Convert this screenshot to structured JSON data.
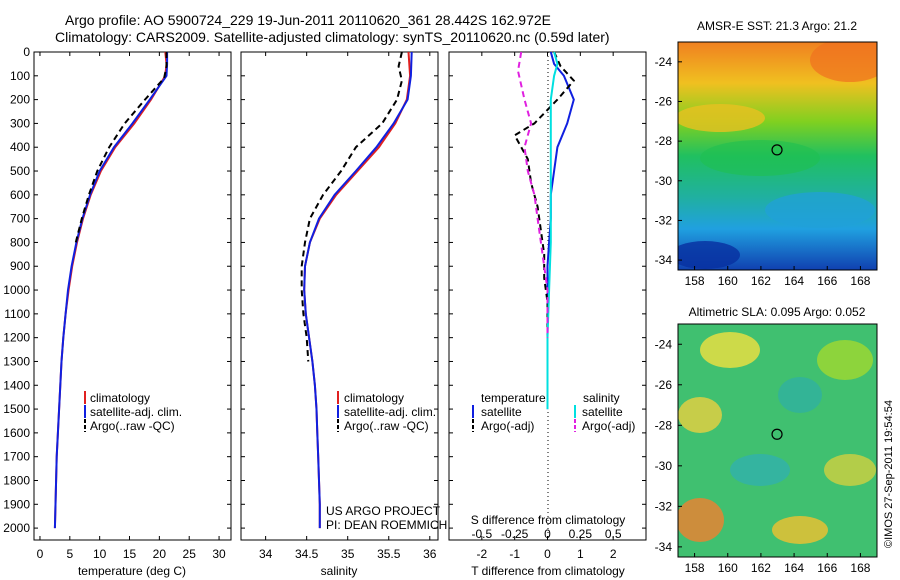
{
  "header": {
    "line1": "Argo profile: AO 5900724_229 19-Jun-2011 20110620_361 28.442S 162.972E",
    "line2": "Climatology: CARS2009. Satellite-adjusted climatology: synTS_20110620.nc (0.59d later)"
  },
  "side_stamp": "©IMOS 27-Sep-2011 19:54:54",
  "chart_data": [
    {
      "id": "temperature",
      "type": "line",
      "xlabel": "temperature (deg C)",
      "xlim": [
        -1,
        32
      ],
      "xticks": [
        0,
        5,
        10,
        15,
        20,
        25,
        30
      ],
      "ylim": [
        2050,
        0
      ],
      "yticks": [
        0,
        100,
        200,
        300,
        400,
        500,
        600,
        700,
        800,
        900,
        1000,
        1100,
        1200,
        1300,
        1400,
        1500,
        1600,
        1700,
        1800,
        1900,
        2000
      ],
      "legend": [
        "climatology",
        "satellite-adj. clim.",
        "Argo(..raw -QC)"
      ],
      "series": [
        {
          "name": "climatology",
          "color": "#e02020",
          "dash": "",
          "points": [
            [
              21.0,
              0
            ],
            [
              21.2,
              50
            ],
            [
              21.0,
              100
            ],
            [
              18.6,
              200
            ],
            [
              15.8,
              300
            ],
            [
              12.6,
              400
            ],
            [
              10.2,
              500
            ],
            [
              8.5,
              600
            ],
            [
              7.2,
              700
            ],
            [
              6.2,
              800
            ],
            [
              5.4,
              900
            ],
            [
              4.8,
              1000
            ],
            [
              4.3,
              1100
            ],
            [
              3.9,
              1200
            ],
            [
              3.6,
              1300
            ],
            [
              3.4,
              1400
            ],
            [
              3.2,
              1500
            ],
            [
              3.0,
              1600
            ],
            [
              2.8,
              1700
            ],
            [
              2.7,
              1800
            ],
            [
              2.6,
              1900
            ],
            [
              2.5,
              2000
            ]
          ]
        },
        {
          "name": "satellite-adj. clim.",
          "color": "#1020e0",
          "dash": "",
          "points": [
            [
              21.3,
              0
            ],
            [
              21.3,
              50
            ],
            [
              21.2,
              100
            ],
            [
              18.4,
              200
            ],
            [
              15.5,
              300
            ],
            [
              12.4,
              400
            ],
            [
              10.0,
              500
            ],
            [
              8.4,
              600
            ],
            [
              7.1,
              700
            ],
            [
              6.1,
              800
            ],
            [
              5.3,
              900
            ],
            [
              4.7,
              1000
            ],
            [
              4.3,
              1100
            ],
            [
              3.9,
              1200
            ],
            [
              3.6,
              1300
            ],
            [
              3.4,
              1400
            ],
            [
              3.2,
              1500
            ],
            [
              3.0,
              1600
            ],
            [
              2.8,
              1700
            ],
            [
              2.7,
              1800
            ],
            [
              2.6,
              1900
            ],
            [
              2.5,
              2000
            ]
          ]
        },
        {
          "name": "Argo(..raw -QC)",
          "color": "#000000",
          "dash": "6,4",
          "points": [
            [
              21.2,
              0
            ],
            [
              21.2,
              60
            ],
            [
              20.8,
              110
            ],
            [
              17.6,
              200
            ],
            [
              14.2,
              300
            ],
            [
              11.6,
              400
            ],
            [
              9.6,
              500
            ],
            [
              8.2,
              600
            ],
            [
              7.0,
              700
            ],
            [
              6.0,
              800
            ]
          ]
        }
      ]
    },
    {
      "id": "salinity",
      "type": "line",
      "xlabel": "salinity",
      "xlim": [
        33.7,
        36.1
      ],
      "xticks": [
        34,
        34.5,
        35,
        35.5,
        36
      ],
      "ylim": [
        2050,
        0
      ],
      "yticks": [
        0,
        100,
        200,
        300,
        400,
        500,
        600,
        700,
        800,
        900,
        1000,
        1100,
        1200,
        1300,
        1400,
        1500,
        1600,
        1700,
        1800,
        1900,
        2000
      ],
      "legend": [
        "climatology",
        "satellite-adj. clim.",
        "Argo(..raw -QC)"
      ],
      "annotation": [
        "US ARGO PROJECT",
        "PI: DEAN ROEMMICH"
      ],
      "series": [
        {
          "name": "climatology",
          "color": "#e02020",
          "dash": "",
          "points": [
            [
              35.74,
              0
            ],
            [
              35.76,
              100
            ],
            [
              35.72,
              200
            ],
            [
              35.58,
              300
            ],
            [
              35.38,
              400
            ],
            [
              35.12,
              500
            ],
            [
              34.86,
              600
            ],
            [
              34.66,
              700
            ],
            [
              34.54,
              800
            ],
            [
              34.48,
              900
            ],
            [
              34.47,
              1000
            ],
            [
              34.49,
              1100
            ],
            [
              34.53,
              1200
            ],
            [
              34.57,
              1300
            ],
            [
              34.6,
              1400
            ],
            [
              34.62,
              1500
            ],
            [
              34.63,
              1600
            ],
            [
              34.64,
              1700
            ],
            [
              34.65,
              1800
            ],
            [
              34.66,
              1900
            ],
            [
              34.66,
              2000
            ]
          ]
        },
        {
          "name": "satellite-adj. clim.",
          "color": "#1020e0",
          "dash": "",
          "points": [
            [
              35.78,
              0
            ],
            [
              35.77,
              100
            ],
            [
              35.73,
              200
            ],
            [
              35.56,
              300
            ],
            [
              35.35,
              400
            ],
            [
              35.1,
              500
            ],
            [
              34.84,
              600
            ],
            [
              34.65,
              700
            ],
            [
              34.54,
              800
            ],
            [
              34.48,
              900
            ],
            [
              34.47,
              1000
            ],
            [
              34.49,
              1100
            ],
            [
              34.53,
              1200
            ],
            [
              34.57,
              1300
            ],
            [
              34.6,
              1400
            ],
            [
              34.62,
              1500
            ],
            [
              34.63,
              1600
            ],
            [
              34.64,
              1700
            ],
            [
              34.65,
              1800
            ],
            [
              34.66,
              1900
            ],
            [
              34.66,
              2000
            ]
          ]
        },
        {
          "name": "Argo(..raw -QC)",
          "color": "#000000",
          "dash": "6,4",
          "points": [
            [
              35.66,
              0
            ],
            [
              35.62,
              60
            ],
            [
              35.66,
              120
            ],
            [
              35.6,
              200
            ],
            [
              35.42,
              300
            ],
            [
              35.1,
              400
            ],
            [
              34.92,
              500
            ],
            [
              34.7,
              600
            ],
            [
              34.54,
              700
            ],
            [
              34.48,
              800
            ],
            [
              34.44,
              900
            ],
            [
              34.44,
              1000
            ],
            [
              34.46,
              1100
            ],
            [
              34.5,
              1200
            ],
            [
              34.52,
              1300
            ]
          ]
        }
      ]
    },
    {
      "id": "difference",
      "type": "line",
      "xlabel": "T difference from climatology",
      "xlabel_top": "S difference from climatology",
      "xlim": [
        -3,
        3
      ],
      "xticks": [
        -2,
        -1,
        0,
        1,
        2
      ],
      "s_ticks": [
        "-0.5",
        "-0.25",
        "0",
        "0.25",
        "0.5"
      ],
      "ylim": [
        2050,
        0
      ],
      "yticks": [
        0,
        100,
        200,
        300,
        400,
        500,
        600,
        700,
        800,
        900,
        1000,
        1100,
        1200,
        1300,
        1400,
        1500,
        1600,
        1700,
        1800,
        1900,
        2000
      ],
      "legend_headers": [
        "temperature",
        "salinity"
      ],
      "legend": [
        "satellite",
        "Argo(-adj)",
        "satellite",
        "Argo(-adj)"
      ],
      "series": [
        {
          "name": "satellite",
          "color": "#1020e0",
          "dash": "",
          "points": [
            [
              0.1,
              0
            ],
            [
              0.2,
              50
            ],
            [
              0.5,
              100
            ],
            [
              0.8,
              200
            ],
            [
              0.6,
              300
            ],
            [
              0.3,
              400
            ],
            [
              0.2,
              500
            ],
            [
              0.1,
              600
            ],
            [
              0.1,
              700
            ],
            [
              0.05,
              800
            ],
            [
              0,
              900
            ],
            [
              0,
              1000
            ],
            [
              0,
              1100
            ],
            [
              0,
              1200
            ],
            [
              0,
              1300
            ],
            [
              0,
              1400
            ],
            [
              0,
              1500
            ]
          ]
        },
        {
          "name": "Argo(-adj)",
          "color": "#000000",
          "dash": "6,4",
          "points": [
            [
              0.2,
              0
            ],
            [
              0.4,
              60
            ],
            [
              0.8,
              120
            ],
            [
              0.3,
              200
            ],
            [
              -0.4,
              300
            ],
            [
              -1.0,
              350
            ],
            [
              -0.6,
              450
            ],
            [
              -0.5,
              550
            ],
            [
              -0.3,
              650
            ],
            [
              -0.2,
              750
            ],
            [
              -0.1,
              850
            ],
            [
              -0.1,
              950
            ],
            [
              0,
              1050
            ],
            [
              0,
              1150
            ],
            [
              0,
              1250
            ]
          ]
        },
        {
          "name": "satellite",
          "color": "#00e0e0",
          "dash": "",
          "points": [
            [
              0.2,
              0
            ],
            [
              0.3,
              50
            ],
            [
              0.2,
              100
            ],
            [
              0.1,
              200
            ],
            [
              0.1,
              350
            ],
            [
              0.1,
              500
            ],
            [
              0.1,
              650
            ],
            [
              0.1,
              800
            ],
            [
              0.05,
              1000
            ],
            [
              0,
              1200
            ],
            [
              0,
              1500
            ]
          ]
        },
        {
          "name": "Argo(-adj)",
          "color": "#e020e0",
          "dash": "6,4",
          "points": [
            [
              -0.8,
              0
            ],
            [
              -0.9,
              80
            ],
            [
              -0.7,
              200
            ],
            [
              -0.5,
              300
            ],
            [
              -0.7,
              400
            ],
            [
              -0.6,
              500
            ],
            [
              -0.4,
              600
            ],
            [
              -0.3,
              700
            ],
            [
              -0.2,
              800
            ],
            [
              -0.1,
              900
            ],
            [
              0,
              1000
            ],
            [
              0,
              1100
            ],
            [
              0,
              1200
            ]
          ]
        }
      ]
    },
    {
      "id": "sst-map",
      "type": "heatmap",
      "title": "AMSR-E SST: 21.3 Argo: 21.2",
      "xticks": [
        158,
        160,
        162,
        164,
        166,
        168
      ],
      "yticks": [
        -24,
        -26,
        -28,
        -30,
        -32,
        -34
      ],
      "xlim": [
        157,
        169
      ],
      "ylim": [
        -34.5,
        -23
      ]
    },
    {
      "id": "sla-map",
      "type": "heatmap",
      "title": "Altimetric SLA: 0.095 Argo: 0.052",
      "xticks": [
        158,
        160,
        162,
        164,
        166,
        168
      ],
      "yticks": [
        -24,
        -26,
        -28,
        -30,
        -32,
        -34
      ],
      "xlim": [
        157,
        169
      ],
      "ylim": [
        -34.5,
        -23
      ]
    }
  ],
  "argo_position": {
    "lon": 162.972,
    "lat": -28.442
  }
}
